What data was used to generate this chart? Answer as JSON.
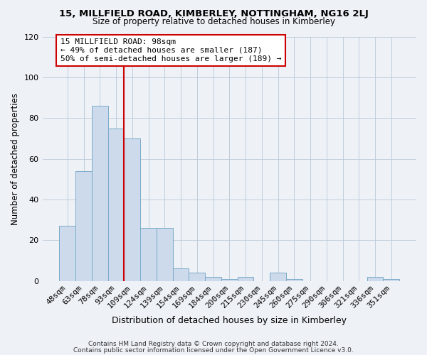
{
  "title": "15, MILLFIELD ROAD, KIMBERLEY, NOTTINGHAM, NG16 2LJ",
  "subtitle": "Size of property relative to detached houses in Kimberley",
  "xlabel": "Distribution of detached houses by size in Kimberley",
  "ylabel": "Number of detached properties",
  "bar_labels": [
    "48sqm",
    "63sqm",
    "78sqm",
    "93sqm",
    "109sqm",
    "124sqm",
    "139sqm",
    "154sqm",
    "169sqm",
    "184sqm",
    "200sqm",
    "215sqm",
    "230sqm",
    "245sqm",
    "260sqm",
    "275sqm",
    "290sqm",
    "306sqm",
    "321sqm",
    "336sqm",
    "351sqm"
  ],
  "bar_values": [
    27,
    54,
    86,
    75,
    70,
    26,
    26,
    6,
    4,
    2,
    1,
    2,
    0,
    4,
    1,
    0,
    0,
    0,
    0,
    2,
    1
  ],
  "bar_color": "#ccdaeb",
  "bar_edge_color": "#7aaac8",
  "vline_color": "#cc0000",
  "vline_pos": 3.5,
  "annotation_text": "15 MILLFIELD ROAD: 98sqm\n← 49% of detached houses are smaller (187)\n50% of semi-detached houses are larger (189) →",
  "ylim": [
    0,
    120
  ],
  "yticks": [
    0,
    20,
    40,
    60,
    80,
    100,
    120
  ],
  "footer1": "Contains HM Land Registry data © Crown copyright and database right 2024.",
  "footer2": "Contains public sector information licensed under the Open Government Licence v3.0.",
  "bg_color": "#eef2f7",
  "plot_bg_color": "#eef2f7"
}
